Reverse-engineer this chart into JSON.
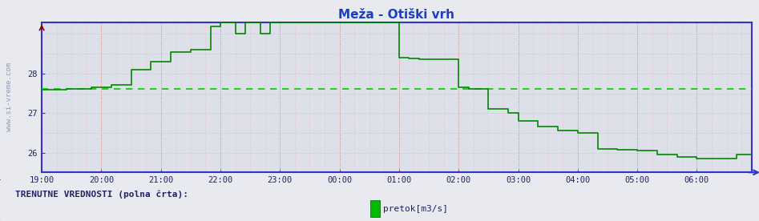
{
  "title": "Meža - Otiški vrh",
  "title_color": "#1a3fbf",
  "bg_color": "#e8eaf0",
  "plot_bg_color": "#dde0e8",
  "grid_v_major_color": "#dd8888",
  "grid_v_minor_color": "#e8bbbb",
  "grid_h_color": "#bbbbcc",
  "line_color": "#008800",
  "avg_line_color": "#00cc00",
  "axis_color": "#3333cc",
  "tick_color": "#222266",
  "watermark_color": "#8888aa",
  "xlabel_labels": [
    "19:00",
    "20:00",
    "21:00",
    "22:00",
    "23:00",
    "00:00",
    "01:00",
    "02:00",
    "03:00",
    "04:00",
    "05:00",
    "06:00"
  ],
  "ylim": [
    25.5,
    29.3
  ],
  "yticks": [
    26,
    27,
    28
  ],
  "avg_value": 27.62,
  "legend_label": "pretok[m3/s]",
  "legend_color": "#00bb00",
  "bottom_label": "TRENUTNE VREDNOSTI (polna črta):",
  "sidebar_text": "www.si-vreme.com",
  "time_points": 144,
  "step_data": [
    [
      0,
      27.6
    ],
    [
      5,
      27.62
    ],
    [
      10,
      27.65
    ],
    [
      14,
      27.72
    ],
    [
      18,
      28.1
    ],
    [
      22,
      28.3
    ],
    [
      26,
      28.55
    ],
    [
      30,
      28.6
    ],
    [
      34,
      29.2
    ],
    [
      36,
      29.3
    ],
    [
      39,
      29.0
    ],
    [
      41,
      29.3
    ],
    [
      44,
      29.0
    ],
    [
      46,
      29.3
    ],
    [
      50,
      29.3
    ],
    [
      54,
      29.3
    ],
    [
      62,
      29.3
    ],
    [
      68,
      29.3
    ],
    [
      72,
      28.4
    ],
    [
      74,
      28.38
    ],
    [
      76,
      28.36
    ],
    [
      80,
      28.36
    ],
    [
      84,
      27.65
    ],
    [
      86,
      27.62
    ],
    [
      88,
      27.62
    ],
    [
      90,
      27.1
    ],
    [
      94,
      27.0
    ],
    [
      96,
      26.8
    ],
    [
      100,
      26.65
    ],
    [
      104,
      26.55
    ],
    [
      108,
      26.5
    ],
    [
      112,
      26.1
    ],
    [
      116,
      26.08
    ],
    [
      120,
      26.05
    ],
    [
      124,
      25.95
    ],
    [
      128,
      25.9
    ],
    [
      132,
      25.85
    ],
    [
      136,
      25.85
    ],
    [
      139,
      25.85
    ],
    [
      140,
      25.95
    ],
    [
      143,
      25.95
    ]
  ]
}
